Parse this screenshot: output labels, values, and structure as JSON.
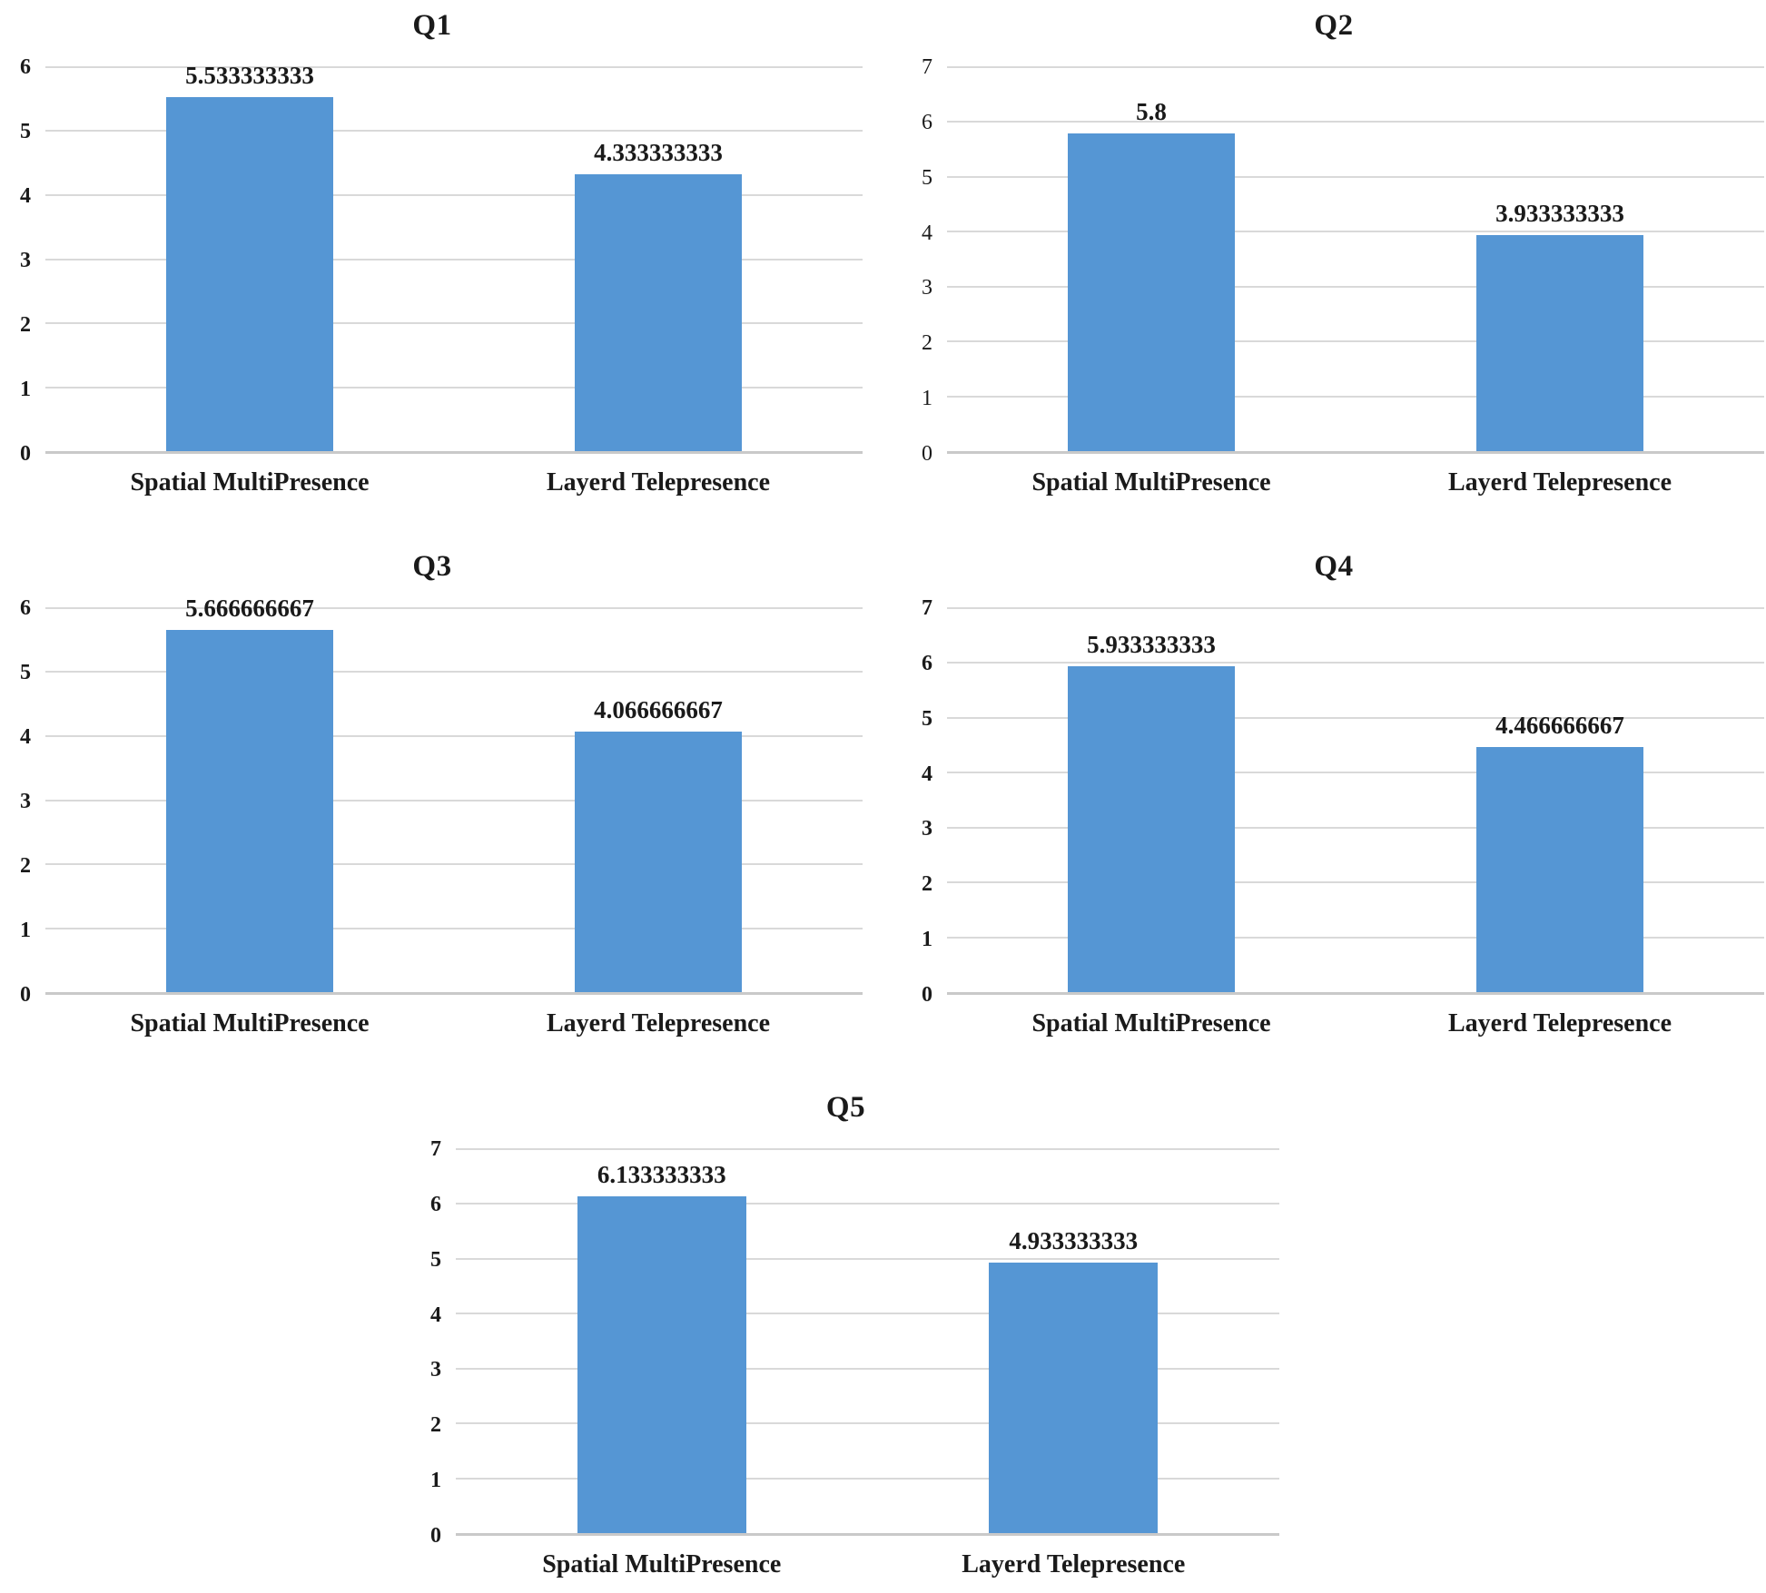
{
  "colors": {
    "bar": "#5596D4",
    "gridline": "#D9D9D9",
    "axis_line": "#C9C9C9",
    "text": "#1A1A1A"
  },
  "chart_data": [
    {
      "type": "bar",
      "title": "Q1",
      "categories": [
        "Spatial MultiPresence",
        "Layerd Telepresence"
      ],
      "values": [
        5.533333333,
        4.333333333
      ],
      "value_labels": [
        "5.533333333",
        "4.333333333"
      ],
      "ylim": [
        0,
        6
      ],
      "ytick_step": 1,
      "yticks": [
        "6",
        "5",
        "4",
        "3",
        "2",
        "1",
        "0"
      ],
      "xlabel": "",
      "ylabel": "",
      "grid": true,
      "legend": false,
      "tick_font_weight": "bold"
    },
    {
      "type": "bar",
      "title": "Q2",
      "categories": [
        "Spatial MultiPresence",
        "Layerd Telepresence"
      ],
      "values": [
        5.8,
        3.933333333
      ],
      "value_labels": [
        "5.8",
        "3.933333333"
      ],
      "ylim": [
        0,
        7
      ],
      "ytick_step": 1,
      "yticks": [
        "7",
        "6",
        "5",
        "4",
        "3",
        "2",
        "1",
        "0"
      ],
      "xlabel": "",
      "ylabel": "",
      "grid": true,
      "legend": false,
      "tick_font_weight": "normal"
    },
    {
      "type": "bar",
      "title": "Q3",
      "categories": [
        "Spatial MultiPresence",
        "Layerd Telepresence"
      ],
      "values": [
        5.666666667,
        4.066666667
      ],
      "value_labels": [
        "5.666666667",
        "4.066666667"
      ],
      "ylim": [
        0,
        6
      ],
      "ytick_step": 1,
      "yticks": [
        "6",
        "5",
        "4",
        "3",
        "2",
        "1",
        "0"
      ],
      "xlabel": "",
      "ylabel": "",
      "grid": true,
      "legend": false,
      "tick_font_weight": "bold"
    },
    {
      "type": "bar",
      "title": "Q4",
      "categories": [
        "Spatial MultiPresence",
        "Layerd Telepresence"
      ],
      "values": [
        5.933333333,
        4.466666667
      ],
      "value_labels": [
        "5.933333333",
        "4.466666667"
      ],
      "ylim": [
        0,
        7
      ],
      "ytick_step": 1,
      "yticks": [
        "7",
        "6",
        "5",
        "4",
        "3",
        "2",
        "1",
        "0"
      ],
      "xlabel": "",
      "ylabel": "",
      "grid": true,
      "legend": false,
      "tick_font_weight": "bold"
    },
    {
      "type": "bar",
      "title": "Q5",
      "categories": [
        "Spatial MultiPresence",
        "Layerd Telepresence"
      ],
      "values": [
        6.133333333,
        4.933333333
      ],
      "value_labels": [
        "6.133333333",
        "4.933333333"
      ],
      "ylim": [
        0,
        7
      ],
      "ytick_step": 1,
      "yticks": [
        "7",
        "6",
        "5",
        "4",
        "3",
        "2",
        "1",
        "0"
      ],
      "xlabel": "",
      "ylabel": "",
      "grid": true,
      "legend": false,
      "tick_font_weight": "bold"
    }
  ]
}
